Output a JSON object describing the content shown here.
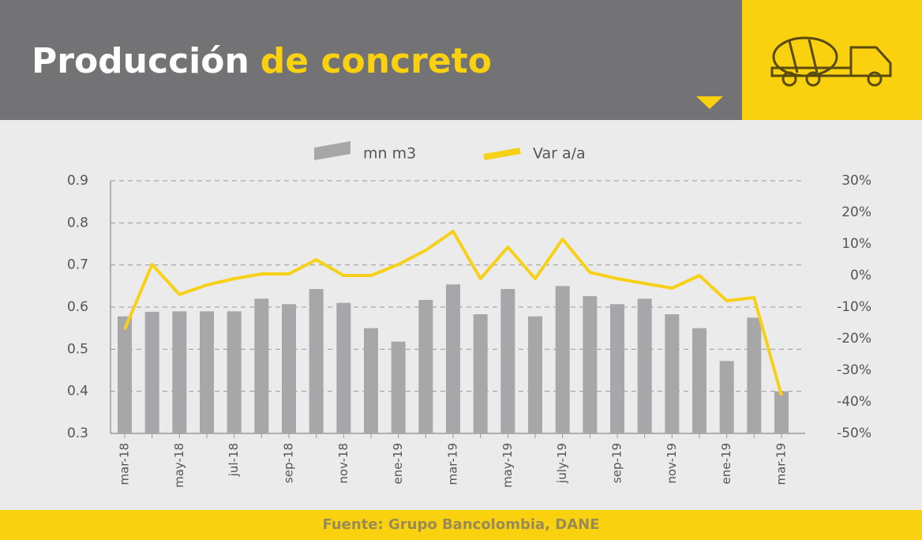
{
  "header": {
    "title": "Producción",
    "title_highlight": "de concreto"
  },
  "source": "Fuente: Grupo Bancolombia, DANE",
  "chart_data": {
    "type": "bar_line",
    "categories": [
      "mar-18",
      null,
      "may-18",
      null,
      "jul-18",
      null,
      "sep-18",
      null,
      "nov-18",
      null,
      "ene-19",
      null,
      "mar-19",
      null,
      "may-19",
      null,
      "july-19",
      null,
      "sep-19",
      null,
      "nov-19",
      null,
      "ene-19",
      null,
      "mar-19"
    ],
    "series": [
      {
        "name": "mn m3",
        "color": "#a7a7a9",
        "type": "bar",
        "values": [
          0.578,
          0.589,
          0.59,
          0.59,
          0.59,
          0.62,
          0.607,
          0.643,
          0.61,
          0.55,
          0.518,
          0.617,
          0.654,
          0.583,
          0.643,
          0.578,
          0.65,
          0.626,
          0.607,
          0.62,
          0.583,
          0.55,
          0.472,
          0.575,
          0.4
        ]
      },
      {
        "name": "Var a/a",
        "color": "#f7d117",
        "type": "line",
        "axis": "y2",
        "values": [
          -17,
          3.5,
          -6,
          -3,
          -1,
          0.5,
          0.5,
          5,
          0,
          0,
          3.5,
          8,
          14,
          -1,
          9,
          -1,
          11.5,
          1,
          -1,
          -2.5,
          -4,
          0,
          -8,
          -7,
          -38
        ]
      }
    ],
    "ylim": [
      0.3,
      0.9
    ],
    "yticks": [
      0.3,
      0.4,
      0.5,
      0.6,
      0.7,
      0.8,
      0.9
    ],
    "y2lim": [
      -50,
      30
    ],
    "y2ticks": [
      {
        "value": -50,
        "label": "-50%"
      },
      {
        "value": -40,
        "label": "-40%"
      },
      {
        "value": -30,
        "label": "-30%"
      },
      {
        "value": -20,
        "label": "-20%"
      },
      {
        "value": -10,
        "label": "-10%"
      },
      {
        "value": 0,
        "label": "0%"
      },
      {
        "value": 10,
        "label": "10%"
      },
      {
        "value": 20,
        "label": "20%"
      },
      {
        "value": 30,
        "label": "30%"
      }
    ],
    "grid": true
  }
}
